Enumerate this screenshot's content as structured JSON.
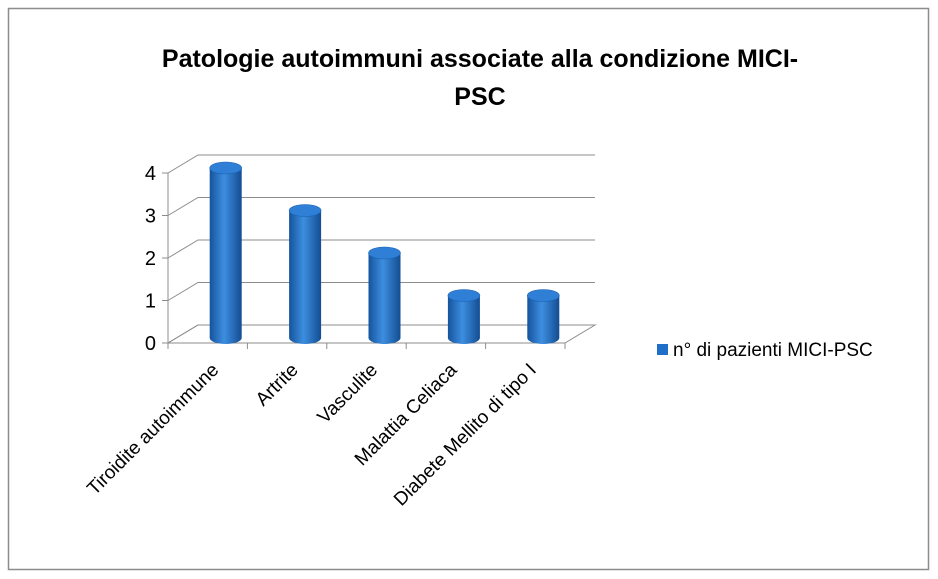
{
  "chart_data": {
    "type": "bar",
    "title": "Patologie autoimmuni associate alla condizione MICI-PSC",
    "categories": [
      "Tiroidite autoimmune",
      "Artrite",
      "Vasculite",
      "Malattia Celiaca",
      "Diabete Mellito di tipo I"
    ],
    "series": [
      {
        "name": "n° di pazienti MICI-PSC",
        "color": "#1f6fc8",
        "values": [
          4,
          3,
          2,
          1,
          1
        ]
      }
    ],
    "ylim": [
      0,
      4
    ],
    "yticks": [
      0,
      1,
      2,
      3,
      4
    ],
    "grid": true,
    "legend": "right"
  }
}
